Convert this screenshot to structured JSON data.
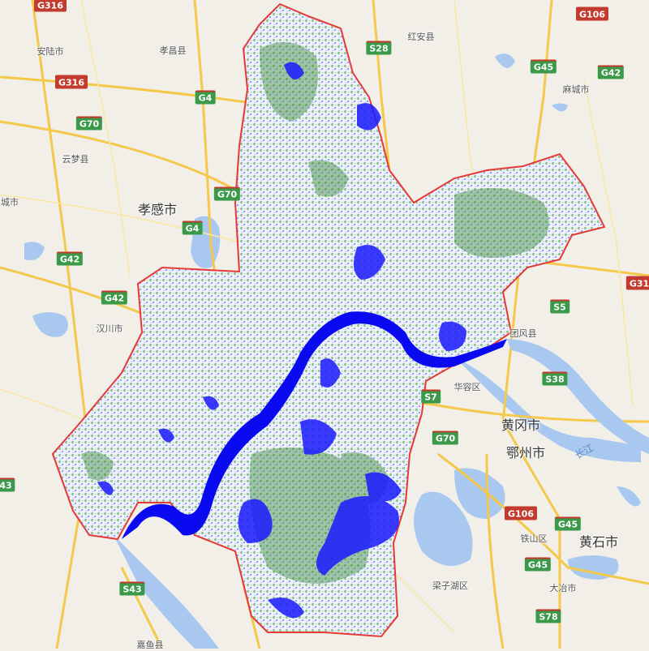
{
  "map": {
    "colors": {
      "background": "#f2efe9",
      "water": "#a8c8f0",
      "highway": "#f4c94a",
      "boundary": "#e53935",
      "vegetation": "#3d8b3d",
      "classified_water": "#1a1aff"
    },
    "cities": [
      {
        "id": "xiaogan",
        "name": "孝感市",
        "major": true
      },
      {
        "id": "huanggang",
        "name": "黄冈市",
        "major": true
      },
      {
        "id": "ezhou",
        "name": "鄂州市",
        "major": true
      },
      {
        "id": "huangshi",
        "name": "黄石市",
        "major": true
      },
      {
        "id": "anlu",
        "name": "安陆市",
        "major": false
      },
      {
        "id": "xiaochang",
        "name": "孝昌县",
        "major": false
      },
      {
        "id": "hongan",
        "name": "红安县",
        "major": false
      },
      {
        "id": "macheng",
        "name": "麻城市",
        "major": false
      },
      {
        "id": "yunmeng",
        "name": "云梦县",
        "major": false
      },
      {
        "id": "chengshi",
        "name": "城市",
        "major": false
      },
      {
        "id": "hanchuan",
        "name": "汉川市",
        "major": false
      },
      {
        "id": "tuanfeng",
        "name": "团风县",
        "major": false
      },
      {
        "id": "huarong",
        "name": "华容区",
        "major": false
      },
      {
        "id": "tieshan",
        "name": "铁山区",
        "major": false
      },
      {
        "id": "liangzihu",
        "name": "梁子湖区",
        "major": false
      },
      {
        "id": "daye",
        "name": "大冶市",
        "major": false
      },
      {
        "id": "jiayu",
        "name": "嘉鱼县",
        "major": false
      }
    ],
    "shields": [
      {
        "id": "g316a",
        "text": "G316",
        "kind": "red"
      },
      {
        "id": "g316b",
        "text": "G316",
        "kind": "red"
      },
      {
        "id": "g106a",
        "text": "G106",
        "kind": "red"
      },
      {
        "id": "g106b",
        "text": "G106",
        "kind": "red"
      },
      {
        "id": "g31",
        "text": "G31",
        "kind": "red"
      },
      {
        "id": "s28",
        "text": "S28",
        "kind": "g"
      },
      {
        "id": "g45a",
        "text": "G45",
        "kind": "g"
      },
      {
        "id": "g42a",
        "text": "G42",
        "kind": "g"
      },
      {
        "id": "g4a",
        "text": "G4",
        "kind": "g"
      },
      {
        "id": "g4b",
        "text": "G4",
        "kind": "g"
      },
      {
        "id": "g70a",
        "text": "G70",
        "kind": "g"
      },
      {
        "id": "g70b",
        "text": "G70",
        "kind": "g"
      },
      {
        "id": "g70c",
        "text": "G70",
        "kind": "g"
      },
      {
        "id": "g42b",
        "text": "G42",
        "kind": "g"
      },
      {
        "id": "g42c",
        "text": "G42",
        "kind": "g"
      },
      {
        "id": "s5",
        "text": "S5",
        "kind": "g"
      },
      {
        "id": "s38",
        "text": "S38",
        "kind": "g"
      },
      {
        "id": "s7",
        "text": "S7",
        "kind": "g"
      },
      {
        "id": "s43a",
        "text": "S43",
        "kind": "g"
      },
      {
        "id": "s43b",
        "text": "43",
        "kind": "g"
      },
      {
        "id": "g45b",
        "text": "G45",
        "kind": "g"
      },
      {
        "id": "g45c",
        "text": "G45",
        "kind": "g"
      },
      {
        "id": "s78",
        "text": "S78",
        "kind": "g"
      }
    ],
    "river_label": "长江"
  }
}
